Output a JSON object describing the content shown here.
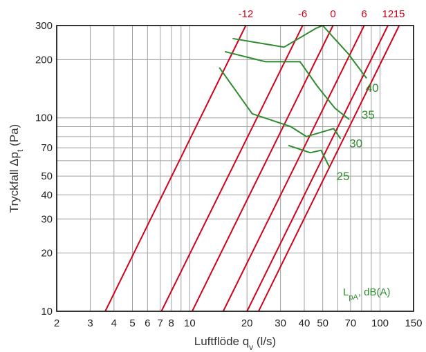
{
  "chart_data": {
    "type": "line",
    "x_scale": "log",
    "y_scale": "log",
    "xlim": [
      2,
      150
    ],
    "ylim": [
      10,
      300
    ],
    "grid": true,
    "xlabel": "Luftflöde q",
    "xlabel_sub": "v",
    "xlabel_unit": " (l/s)",
    "ylabel": "Tryckfall Δp",
    "ylabel_sub": "t",
    "ylabel_unit": " (Pa)",
    "x_ticks": [
      2,
      3,
      4,
      5,
      6,
      7,
      8,
      10,
      20,
      30,
      40,
      50,
      70,
      100,
      150
    ],
    "x_tick_labels": [
      "2",
      "3",
      "4",
      "5",
      "6",
      "7",
      "8",
      "10",
      "20",
      "30",
      "40",
      "50",
      "70",
      "100",
      "150"
    ],
    "y_ticks": [
      10,
      20,
      30,
      40,
      50,
      70,
      100,
      200,
      300
    ],
    "y_tick_labels": [
      "10",
      "20",
      "30",
      "40",
      "50",
      "70",
      "100",
      "200",
      "300"
    ],
    "x_minor_grid": [
      2,
      3,
      4,
      5,
      6,
      7,
      8,
      9,
      10,
      20,
      30,
      40,
      50,
      60,
      70,
      80,
      90,
      100,
      150
    ],
    "y_minor_grid": [
      10,
      20,
      30,
      40,
      50,
      60,
      70,
      80,
      90,
      100,
      200,
      300
    ],
    "colors": {
      "series_red": "#d0021b",
      "series_green": "#2e8b2e",
      "grid": "#a0a0a0",
      "axis": "#000000"
    },
    "red_series": [
      {
        "name": "-12",
        "points": [
          [
            3.6,
            10
          ],
          [
            19.7,
            300
          ]
        ]
      },
      {
        "name": "-6",
        "points": [
          [
            7.1,
            10
          ],
          [
            39.2,
            300
          ]
        ]
      },
      {
        "name": "0",
        "points": [
          [
            10.3,
            10
          ],
          [
            56.6,
            300
          ]
        ]
      },
      {
        "name": "6",
        "points": [
          [
            15.0,
            10
          ],
          [
            82.5,
            300
          ]
        ]
      },
      {
        "name": "12",
        "points": [
          [
            20.0,
            10
          ],
          [
            110,
            300
          ]
        ]
      },
      {
        "name": "15",
        "points": [
          [
            23.0,
            10
          ],
          [
            126,
            300
          ]
        ]
      }
    ],
    "green_series": [
      {
        "name": "40",
        "label_at": [
          84,
          143
        ],
        "points": [
          [
            16.8,
            257
          ],
          [
            31.3,
            232
          ],
          [
            46,
            290
          ],
          [
            50,
            300
          ],
          [
            58,
            255
          ],
          [
            68,
            215
          ],
          [
            85,
            160
          ]
        ]
      },
      {
        "name": "35",
        "label_at": [
          80,
          104
        ],
        "points": [
          [
            15.3,
            220
          ],
          [
            25,
            195
          ],
          [
            38,
            195
          ],
          [
            47,
            145
          ],
          [
            58,
            112
          ],
          [
            69,
            98
          ]
        ]
      },
      {
        "name": "30",
        "label_at": [
          69,
          74
        ],
        "points": [
          [
            14.3,
            182
          ],
          [
            21.3,
            105
          ],
          [
            34,
            90
          ],
          [
            41,
            80
          ],
          [
            57,
            88
          ],
          [
            62,
            78
          ]
        ]
      },
      {
        "name": "25",
        "label_at": [
          59,
          50
        ],
        "points": [
          [
            33,
            72
          ],
          [
            43,
            66
          ],
          [
            49,
            68
          ],
          [
            54,
            56
          ]
        ]
      }
    ],
    "annotation": {
      "text": "L",
      "sub": "pA",
      "suffix": ", dB(A)"
    }
  }
}
